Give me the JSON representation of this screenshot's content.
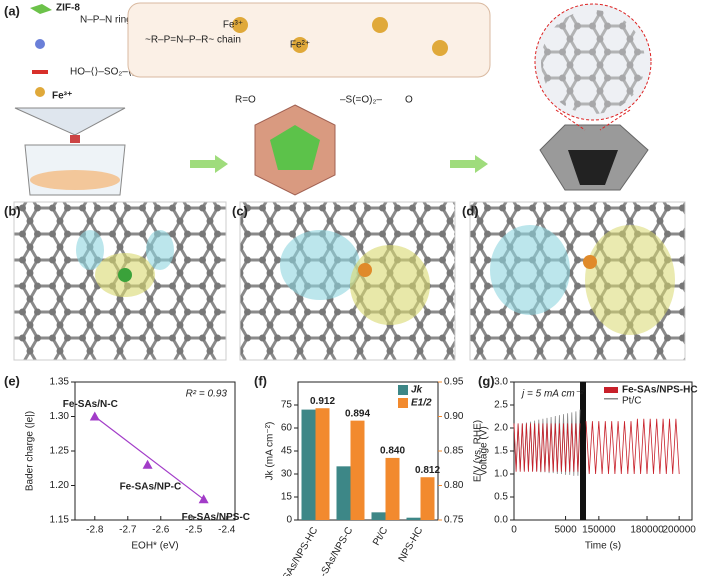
{
  "panel_labels": [
    "(a)",
    "(b)",
    "(c)",
    "(d)",
    "(e)",
    "(f)",
    "(g)"
  ],
  "schematic_labels": [
    "ZIF-8",
    "Fe³⁺",
    "R=O",
    "O",
    "Fe³⁺",
    "Fe²⁺"
  ],
  "chart_data": [
    {
      "type": "scatter",
      "ylabel": "Bader charge (|e|)",
      "xlabel": "EOH* (eV)",
      "annotation": "R² = 0.93",
      "x": [
        -2.8,
        -2.64,
        -2.47
      ],
      "values": [
        1.3,
        1.23,
        1.18
      ],
      "labels": [
        "Fe-SAs/N-C",
        "Fe-SAs/NP-C",
        "Fe-SAs/NPS-C"
      ],
      "color": "#a23cc8",
      "fit_line": true,
      "xlim": [
        -2.86,
        -2.375
      ],
      "xticks": [
        -2.8,
        -2.7,
        -2.6,
        -2.5,
        -2.4
      ],
      "ylim": [
        1.15,
        1.35
      ],
      "yticks": [
        1.15,
        {
          "value": 1.2,
          "label": "1.20"
        },
        1.25,
        {
          "value": 1.3,
          "label": "1.30"
        },
        1.35
      ]
    },
    {
      "type": "bar",
      "ylabel": "Jk (mA cm⁻²)",
      "y2label": "E/V (vs. RHE)",
      "categories": [
        "Fe-SAs/NPS-HC",
        "Fe-SAs/NPS-C",
        "Pt/C",
        "NPS-HC"
      ],
      "series": [
        {
          "name": "Jk",
          "color": "#3d8787",
          "values": [
            72,
            35,
            5,
            1.5
          ]
        },
        {
          "name": "E1/2",
          "color": "#f28a2e",
          "axis": "y2",
          "values": [
            0.912,
            0.894,
            0.84,
            0.812
          ],
          "value_labels": [
            "0.912",
            "0.894",
            "0.840",
            "0.812"
          ]
        }
      ],
      "ylim": [
        0,
        90
      ],
      "yticks": [
        0,
        15,
        30,
        45,
        60,
        75
      ],
      "y2lim": [
        0.75,
        0.95
      ],
      "y2ticks": [
        0.75,
        {
          "value": 0.8,
          "label": "0.80"
        },
        0.85,
        {
          "value": 0.9,
          "label": "0.90"
        },
        0.95
      ]
    },
    {
      "type": "line",
      "ylabel": "Voltage (V)",
      "xlabel": "Time (s)",
      "annotation": "j = 5 mA cm⁻²",
      "x": [
        0,
        200,
        400,
        600,
        800,
        1000,
        1200,
        1400,
        1600,
        1800,
        2000,
        2200,
        2400,
        2600,
        2800,
        3000,
        3200,
        3400,
        3600,
        3800,
        4000,
        4200,
        4400,
        4600,
        4800,
        5000,
        5200,
        5400,
        5600,
        5800,
        6000,
        6200,
        6400,
        142000,
        144000,
        146000,
        148000,
        150000,
        152000,
        154000,
        156000,
        158000,
        160000,
        162000,
        164000,
        166000,
        168000,
        170000,
        172000,
        174000,
        176000,
        178000,
        180000,
        182000,
        184000,
        186000,
        188000,
        190000,
        192000,
        194000,
        196000,
        198000,
        200000
      ],
      "series": [
        {
          "name": "Pt/C",
          "color": "#8a8a8a",
          "values": [
            2.05,
            1.1,
            2.07,
            1.1,
            2.1,
            1.08,
            2.12,
            1.08,
            2.14,
            1.06,
            2.16,
            1.06,
            2.18,
            1.04,
            2.2,
            1.04,
            2.22,
            1.02,
            2.24,
            1.02,
            2.26,
            1.0,
            2.28,
            1.0,
            2.3,
            0.98,
            2.32,
            0.98,
            2.34,
            0.96,
            2.36,
            0.96,
            2.4,
            null,
            null,
            null,
            null,
            null,
            null,
            null,
            null,
            null,
            null,
            null,
            null,
            null,
            null,
            null,
            null,
            null,
            null,
            null,
            null,
            null,
            null,
            null,
            null,
            null,
            null,
            null,
            null,
            null,
            null
          ]
        },
        {
          "name": "Fe-SAs/NPS-HC",
          "color": "#c8202a",
          "values": [
            2.1,
            1.05,
            2.1,
            1.05,
            2.1,
            1.05,
            2.1,
            1.05,
            2.1,
            1.05,
            2.1,
            1.05,
            2.1,
            1.05,
            2.1,
            1.05,
            2.1,
            1.05,
            2.1,
            1.05,
            2.1,
            1.05,
            2.1,
            1.05,
            2.1,
            1.05,
            2.1,
            1.05,
            2.1,
            1.05,
            2.1,
            1.05,
            2.1,
            2.15,
            1.0,
            2.15,
            1.0,
            2.15,
            1.0,
            2.15,
            1.0,
            2.15,
            1.0,
            2.15,
            1.0,
            2.15,
            1.0,
            2.15,
            1.0,
            2.2,
            1.0,
            2.2,
            1.0,
            2.2,
            1.0,
            2.2,
            1.0,
            2.2,
            1.0,
            2.2,
            1.0,
            2.2,
            1.0
          ]
        }
      ],
      "xlim": [
        0,
        208000
      ],
      "x_break": [
        6400,
        142000
      ],
      "xticks": [
        0,
        5000,
        150000,
        180000,
        200000
      ],
      "ylim": [
        0,
        3
      ],
      "yticks": [
        {
          "value": 0,
          "label": "0.0"
        },
        0.5,
        {
          "value": 1,
          "label": "1.0"
        },
        1.5,
        {
          "value": 2,
          "label": "2.0"
        },
        2.5,
        {
          "value": 3,
          "label": "3.0"
        }
      ]
    }
  ]
}
